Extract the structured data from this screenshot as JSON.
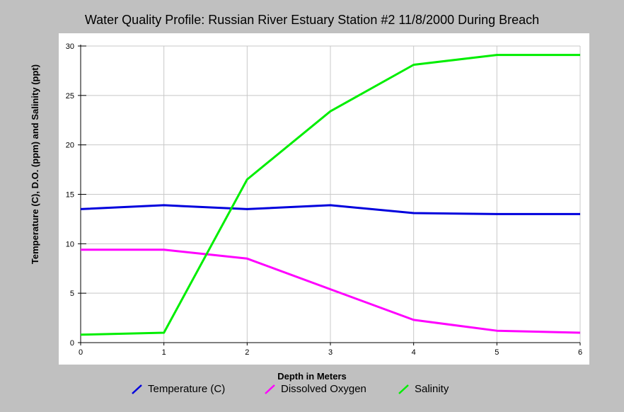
{
  "chart_data": {
    "type": "line",
    "title": "Water Quality Profile: Russian River Estuary Station #2 11/8/2000 During Breach",
    "xlabel": "Depth in Meters",
    "ylabel": "Temperature (C), D.O. (ppm) and Salinity (ppt)",
    "xlim": [
      0,
      6
    ],
    "ylim": [
      0,
      30
    ],
    "x_ticks": [
      "0",
      "1",
      "2",
      "3",
      "4",
      "5",
      "6"
    ],
    "y_ticks": [
      "0",
      "5",
      "10",
      "15",
      "20",
      "25",
      "30"
    ],
    "grid": true,
    "legend_position": "bottom",
    "x": [
      0,
      1,
      2,
      3,
      4,
      5,
      6
    ],
    "series": [
      {
        "name": "Temperature (C)",
        "color": "#0000dd",
        "values": [
          13.5,
          13.9,
          13.5,
          13.9,
          13.1,
          13.0,
          13.0
        ]
      },
      {
        "name": "Dissolved Oxygen",
        "color": "#ff00ff",
        "values": [
          9.4,
          9.4,
          8.5,
          5.4,
          2.3,
          1.2,
          1.0
        ]
      },
      {
        "name": "Salinity",
        "color": "#00ee00",
        "values": [
          0.8,
          1.0,
          16.5,
          23.4,
          28.1,
          29.1,
          29.1
        ]
      }
    ]
  }
}
